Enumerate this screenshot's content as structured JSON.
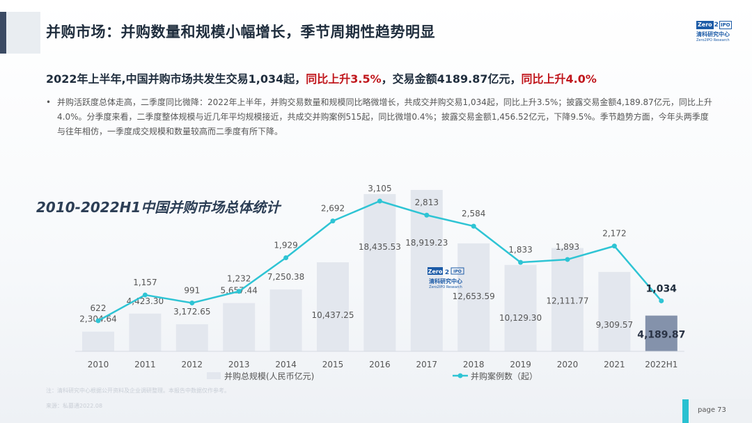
{
  "header": {
    "title": "并购市场：并购数量和规模小幅增长，季节周期性趋势明显",
    "logo": {
      "mark_left": "Zero",
      "mark_mid": "2",
      "mark_right": "IPO",
      "cn": "清科研究中心",
      "en": "Zero2IPO Research"
    }
  },
  "headline": {
    "part1": "2022年上半年,中国并购市场共发生交易1,034起，",
    "part2": "同比上升3.5%",
    "part3": "，交易金额4189.87亿元，",
    "part4": "同比上升4.0%"
  },
  "bullet": {
    "marker": "•",
    "text": "并购活跃度总体走高，二季度同比微降：2022年上半年，并购交易数量和规模同比略微增长，共成交并购交易1,034起，同比上升3.5%；披露交易金额4,189.87亿元，同比上升4.0%。分季度来看，二季度整体规模与近几年平均规模接近，共成交并购案例515起，同比微增0.4%；披露交易金额1,456.52亿元，下降9.5%。季节趋势方面，今年头两季度与往年相仿，一季度成交规模和数量较高而二季度有所下降。"
  },
  "chart_data": {
    "type": "bar",
    "title": "2010-2022H1中国并购市场总体统计",
    "categories": [
      "2010",
      "2011",
      "2012",
      "2013",
      "2014",
      "2015",
      "2016",
      "2017",
      "2018",
      "2019",
      "2020",
      "2021",
      "2022H1"
    ],
    "series": [
      {
        "name": "并购总规模(人民币亿元)",
        "type": "bar",
        "values": [
          2304.64,
          4423.3,
          3172.65,
          5657.44,
          7250.38,
          10437.25,
          18435.53,
          18919.23,
          12653.59,
          10129.3,
          12111.77,
          9309.57,
          4189.87
        ],
        "labels": [
          "2,304.64",
          "4,423.30",
          "3,172.65",
          "5,657.44",
          "7,250.38",
          "10,437.25",
          "18,435.53",
          "18,919.23",
          "12,653.59",
          "10,129.30",
          "12,111.77",
          "9,309.57",
          "4,189.87"
        ],
        "color": "#e3e7ee",
        "highlight_color": "#8492ab"
      },
      {
        "name": "并购案例数（起）",
        "type": "line",
        "values": [
          622,
          1157,
          991,
          1232,
          1929,
          2692,
          3105,
          2813,
          2584,
          1833,
          1893,
          2172,
          1034
        ],
        "labels": [
          "622",
          "1,157",
          "991",
          "1,232",
          "1,929",
          "2,692",
          "3,105",
          "2,813",
          "2,584",
          "1,833",
          "1,893",
          "2,172",
          "1,034"
        ],
        "color": "#2ec4d4"
      }
    ],
    "legend_position": "bottom-center",
    "watermark": {
      "mark_left": "Zero",
      "mark_mid": "2",
      "mark_right": "IPO",
      "cn": "清科研究中心",
      "en": "Zero2IPO Research"
    }
  },
  "footer": {
    "note": "注：清科研究中心根据公开资料及企业调研整理。本报告中数据仅作参考。",
    "source": "来源：私募通2022.08",
    "page": "page  73"
  }
}
